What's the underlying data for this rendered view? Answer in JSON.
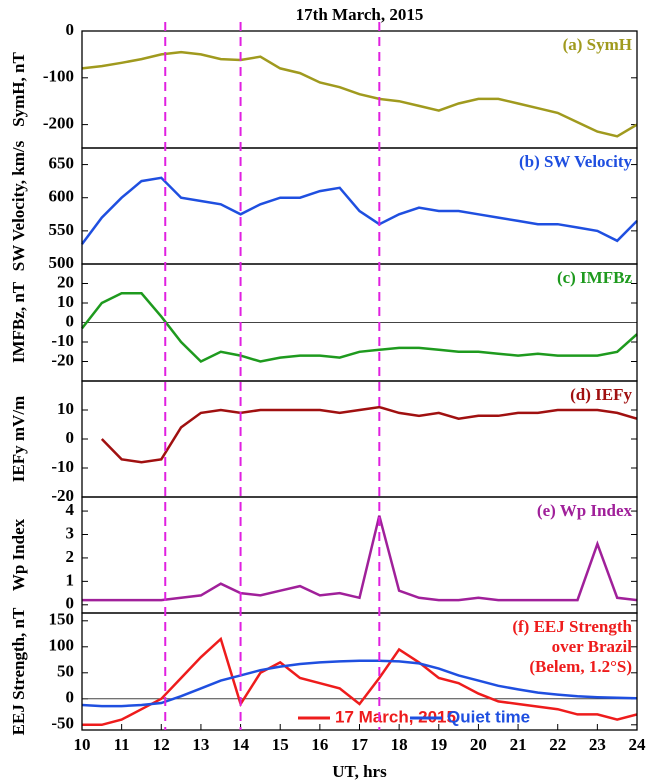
{
  "chart_data": [
    {
      "type": "line",
      "title": "17th March, 2015",
      "ylabel": "SymH, nT",
      "annotation": "(a) SymH",
      "x": [
        10,
        10.5,
        11,
        11.5,
        12,
        12.5,
        13,
        13.5,
        14,
        14.5,
        15,
        15.5,
        16,
        16.5,
        17,
        17.5,
        18,
        18.5,
        19,
        19.5,
        20,
        20.5,
        21,
        21.5,
        22,
        22.5,
        23,
        23.5,
        24
      ],
      "series": [
        {
          "name": "SymH",
          "color": "#a09a1e",
          "values": [
            -80,
            -75,
            -68,
            -60,
            -50,
            -45,
            -50,
            -60,
            -62,
            -55,
            -80,
            -90,
            -110,
            -120,
            -135,
            -145,
            -150,
            -160,
            -170,
            -155,
            -145,
            -145,
            -155,
            -165,
            -175,
            -195,
            -215,
            -225,
            -200
          ]
        }
      ],
      "xlim": [
        10,
        24
      ],
      "ylim": [
        -250,
        0
      ],
      "yticks": [
        -200,
        -100,
        0
      ]
    },
    {
      "type": "line",
      "ylabel": "SW Velocity, km/s",
      "annotation": "(b) SW Velocity",
      "x": [
        10,
        10.5,
        11,
        11.5,
        12,
        12.5,
        13,
        13.5,
        14,
        14.5,
        15,
        15.5,
        16,
        16.5,
        17,
        17.5,
        18,
        18.5,
        19,
        19.5,
        20,
        20.5,
        21,
        21.5,
        22,
        22.5,
        23,
        23.5,
        24
      ],
      "series": [
        {
          "name": "SW Velocity",
          "color": "#1f4fe0",
          "values": [
            530,
            570,
            600,
            625,
            630,
            600,
            595,
            590,
            575,
            590,
            600,
            600,
            610,
            615,
            580,
            560,
            575,
            585,
            580,
            580,
            575,
            570,
            565,
            560,
            560,
            555,
            550,
            535,
            565
          ]
        }
      ],
      "xlim": [
        10,
        24
      ],
      "ylim": [
        500,
        675
      ],
      "yticks": [
        500,
        550,
        600,
        650
      ]
    },
    {
      "type": "line",
      "ylabel": "IMFBz, nT",
      "annotation": "(c) IMFBz",
      "zero_line": true,
      "x": [
        10,
        10.5,
        11,
        11.5,
        12,
        12.5,
        13,
        13.5,
        14,
        14.5,
        15,
        15.5,
        16,
        16.5,
        17,
        17.5,
        18,
        18.5,
        19,
        19.5,
        20,
        20.5,
        21,
        21.5,
        22,
        22.5,
        23,
        23.5,
        24
      ],
      "series": [
        {
          "name": "IMFBz",
          "color": "#1e9a1e",
          "values": [
            -3,
            10,
            15,
            15,
            3,
            -10,
            -20,
            -15,
            -17,
            -20,
            -18,
            -17,
            -17,
            -18,
            -15,
            -14,
            -13,
            -13,
            -14,
            -15,
            -15,
            -16,
            -17,
            -16,
            -17,
            -17,
            -17,
            -15,
            -6
          ]
        }
      ],
      "xlim": [
        10,
        24
      ],
      "ylim": [
        -30,
        30
      ],
      "yticks": [
        -20,
        -10,
        0,
        10,
        20
      ]
    },
    {
      "type": "line",
      "ylabel": "IEFy  mV/m",
      "annotation": "(d) IEFy",
      "x": [
        10,
        10.5,
        11,
        11.5,
        12,
        12.5,
        13,
        13.5,
        14,
        14.5,
        15,
        15.5,
        16,
        16.5,
        17,
        17.5,
        18,
        18.5,
        19,
        19.5,
        20,
        20.5,
        21,
        21.5,
        22,
        22.5,
        23,
        23.5,
        24
      ],
      "series": [
        {
          "name": "IEFy",
          "color": "#a01010",
          "values": [
            null,
            0,
            -7,
            -8,
            -7,
            4,
            9,
            10,
            9,
            10,
            10,
            10,
            10,
            9,
            10,
            11,
            9,
            8,
            9,
            7,
            8,
            8,
            9,
            9,
            10,
            10,
            10,
            9,
            7
          ]
        }
      ],
      "xlim": [
        10,
        24
      ],
      "ylim": [
        -20,
        20
      ],
      "yticks": [
        -20,
        -10,
        0,
        10
      ]
    },
    {
      "type": "line",
      "ylabel": "Wp Index",
      "annotation": "(e) Wp Index",
      "x": [
        10,
        10.5,
        11,
        11.5,
        12,
        12.5,
        13,
        13.5,
        14,
        14.5,
        15,
        15.5,
        16,
        16.5,
        17,
        17.5,
        18,
        18.5,
        19,
        19.5,
        20,
        20.5,
        21,
        21.5,
        22,
        22.5,
        23,
        23.5,
        24
      ],
      "series": [
        {
          "name": "Wp Index",
          "color": "#a0209a",
          "values": [
            0.2,
            0.2,
            0.2,
            0.2,
            0.2,
            0.3,
            0.4,
            0.9,
            0.5,
            0.4,
            0.6,
            0.8,
            0.4,
            0.5,
            0.3,
            3.8,
            0.6,
            0.3,
            0.2,
            0.2,
            0.3,
            0.2,
            0.2,
            0.2,
            0.2,
            0.2,
            2.6,
            0.3,
            0.2
          ]
        }
      ],
      "xlim": [
        10,
        24
      ],
      "ylim": [
        -0.35,
        4.6
      ],
      "yticks": [
        0,
        1,
        2,
        3,
        4
      ]
    },
    {
      "type": "line",
      "ylabel": "EEJ Strength, nT",
      "annotation": [
        "(f) EEJ Strength",
        "over Brazil",
        "(Belem, 1.2°S)"
      ],
      "zero_line": true,
      "xlabel": "UT, hrs",
      "x": [
        10,
        10.5,
        11,
        11.5,
        12,
        12.5,
        13,
        13.5,
        14,
        14.5,
        15,
        15.5,
        16,
        16.5,
        17,
        17.5,
        18,
        18.5,
        19,
        19.5,
        20,
        20.5,
        21,
        21.5,
        22,
        22.5,
        23,
        23.5,
        24
      ],
      "series": [
        {
          "name": "17 March, 2015",
          "color": "#ee1c1c",
          "values": [
            -50,
            -50,
            -40,
            -20,
            0,
            40,
            80,
            115,
            -10,
            50,
            70,
            40,
            30,
            20,
            -10,
            40,
            95,
            70,
            40,
            30,
            10,
            -5,
            -10,
            -15,
            -20,
            -30,
            -30,
            -40,
            -30
          ]
        },
        {
          "name": "Quiet time",
          "color": "#1f4fe0",
          "values": [
            -12,
            -14,
            -14,
            -12,
            -8,
            5,
            20,
            35,
            45,
            55,
            62,
            67,
            70,
            72,
            73,
            73,
            72,
            68,
            58,
            45,
            35,
            25,
            18,
            12,
            8,
            5,
            3,
            2,
            1
          ]
        }
      ],
      "xlim": [
        10,
        24
      ],
      "ylim": [
        -60,
        165
      ],
      "yticks": [
        -50,
        0,
        50,
        100,
        150
      ],
      "xticks": [
        10,
        11,
        12,
        13,
        14,
        15,
        16,
        17,
        18,
        19,
        20,
        21,
        22,
        23,
        24
      ],
      "event_lines": {
        "color": "#e020e0",
        "values": [
          12.1,
          14.0,
          17.5
        ]
      }
    }
  ]
}
